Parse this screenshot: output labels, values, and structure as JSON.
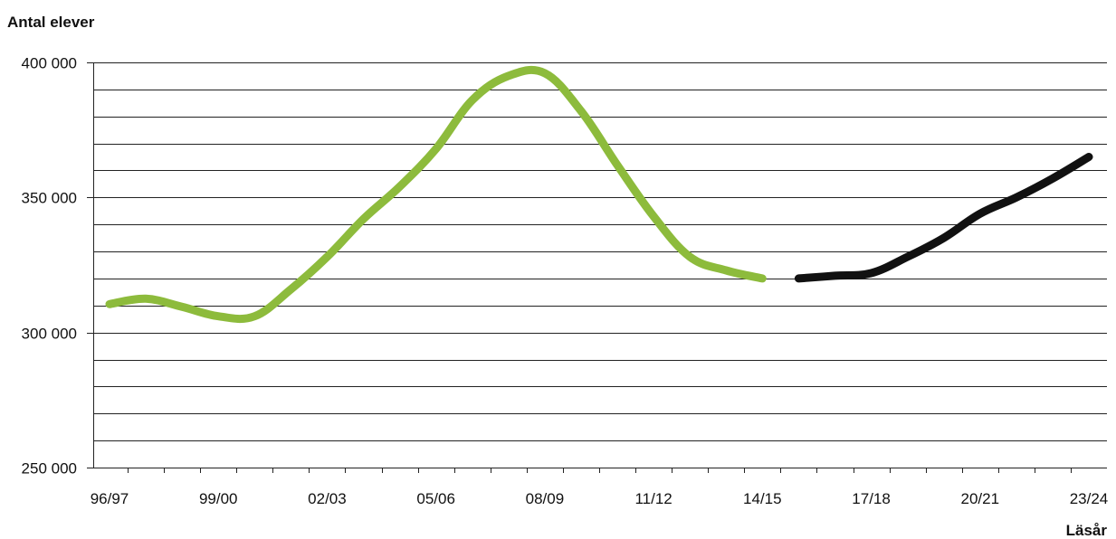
{
  "chart_data": {
    "type": "line",
    "ylabel": "Antal elever",
    "xlabel": "Läsår",
    "ylim": [
      250000,
      400000
    ],
    "y_tick_labels": [
      {
        "value": 250000,
        "label": "250 000"
      },
      {
        "value": 300000,
        "label": "300 000"
      },
      {
        "value": 350000,
        "label": "350 000"
      },
      {
        "value": 400000,
        "label": "400 000"
      }
    ],
    "grid_step": 10000,
    "x_tick_count": 28,
    "x_tick_labels": [
      {
        "index": 0,
        "label": "96/97"
      },
      {
        "index": 3,
        "label": "99/00"
      },
      {
        "index": 6,
        "label": "02/03"
      },
      {
        "index": 9,
        "label": "05/06"
      },
      {
        "index": 12,
        "label": "08/09"
      },
      {
        "index": 15,
        "label": "11/12"
      },
      {
        "index": 18,
        "label": "14/15"
      },
      {
        "index": 21,
        "label": "17/18"
      },
      {
        "index": 24,
        "label": "20/21"
      },
      {
        "index": 27,
        "label": "23/24"
      }
    ],
    "grid": true,
    "series": [
      {
        "color": "#8dbb3c",
        "x": [
          0,
          1,
          2,
          3,
          4,
          5,
          6,
          7,
          8,
          9,
          10,
          11,
          12,
          13,
          14,
          15,
          16,
          17,
          18,
          19
        ],
        "values": [
          310500,
          312500,
          309500,
          306000,
          306000,
          316000,
          328000,
          342000,
          354000,
          368000,
          386000,
          395000,
          396000,
          382000,
          362000,
          343000,
          328000,
          323000,
          320000,
          null
        ]
      },
      {
        "color": "#111111",
        "x": [
          19,
          20,
          21,
          22,
          23,
          24,
          25,
          26,
          27
        ],
        "values": [
          320000,
          321000,
          322000,
          328000,
          335000,
          344000,
          350000,
          357000,
          365000
        ]
      }
    ]
  }
}
